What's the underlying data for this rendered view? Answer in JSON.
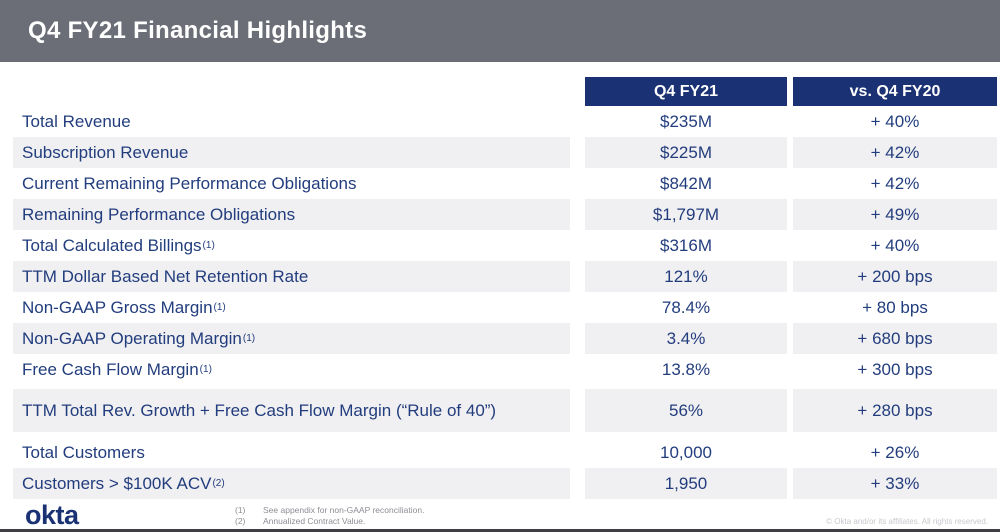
{
  "slide": {
    "title": "Q4 FY21 Financial Highlights"
  },
  "colors": {
    "titlebar_bg": "#6b6d77",
    "table_header_bg": "#1a3173",
    "table_text_navy": "#223d7d",
    "row_stripe": "#f0eff2",
    "logo_navy": "#1a3173"
  },
  "table": {
    "columns": [
      "Q4 FY21",
      "vs. Q4 FY20"
    ],
    "rows": [
      {
        "label": "Total Revenue",
        "sup": "",
        "q4fy21": "$235M",
        "vs_q4fy20": "+ 40%"
      },
      {
        "label": "Subscription Revenue",
        "sup": "",
        "q4fy21": "$225M",
        "vs_q4fy20": "+ 42%"
      },
      {
        "label": "Current Remaining Performance Obligations",
        "sup": "",
        "q4fy21": "$842M",
        "vs_q4fy20": "+ 42%"
      },
      {
        "label": "Remaining Performance Obligations",
        "sup": "",
        "q4fy21": "$1,797M",
        "vs_q4fy20": "+ 49%"
      },
      {
        "label": "Total Calculated Billings",
        "sup": "(1)",
        "q4fy21": "$316M",
        "vs_q4fy20": "+ 40%"
      },
      {
        "label": "TTM Dollar Based Net Retention Rate",
        "sup": "",
        "q4fy21": "121%",
        "vs_q4fy20": "+ 200 bps"
      },
      {
        "label": "Non-GAAP Gross Margin",
        "sup": "(1)",
        "q4fy21": "78.4%",
        "vs_q4fy20": "+ 80 bps"
      },
      {
        "label": "Non-GAAP Operating Margin",
        "sup": "(1)",
        "q4fy21": "3.4%",
        "vs_q4fy20": "+ 680 bps"
      },
      {
        "label": "Free Cash Flow Margin",
        "sup": "(1)",
        "q4fy21": "13.8%",
        "vs_q4fy20": "+ 300 bps"
      },
      {
        "label": "TTM Total Rev. Growth + Free Cash Flow Margin (“Rule of 40”)",
        "sup": "",
        "q4fy21": "56%",
        "vs_q4fy20": "+ 280 bps",
        "tall": true
      },
      {
        "label": "Total Customers",
        "sup": "",
        "q4fy21": "10,000",
        "vs_q4fy20": "+ 26%"
      },
      {
        "label": "Customers > $100K ACV",
        "sup": "(2)",
        "q4fy21": "1,950",
        "vs_q4fy20": "+ 33%"
      }
    ]
  },
  "footer": {
    "logo": "okta",
    "footnotes": [
      {
        "num": "(1)",
        "text": "See appendix for non-GAAP reconciliation."
      },
      {
        "num": "(2)",
        "text": "Annualized Contract Value."
      }
    ],
    "copyright": "© Okta and/or its affiliates. All rights reserved."
  }
}
